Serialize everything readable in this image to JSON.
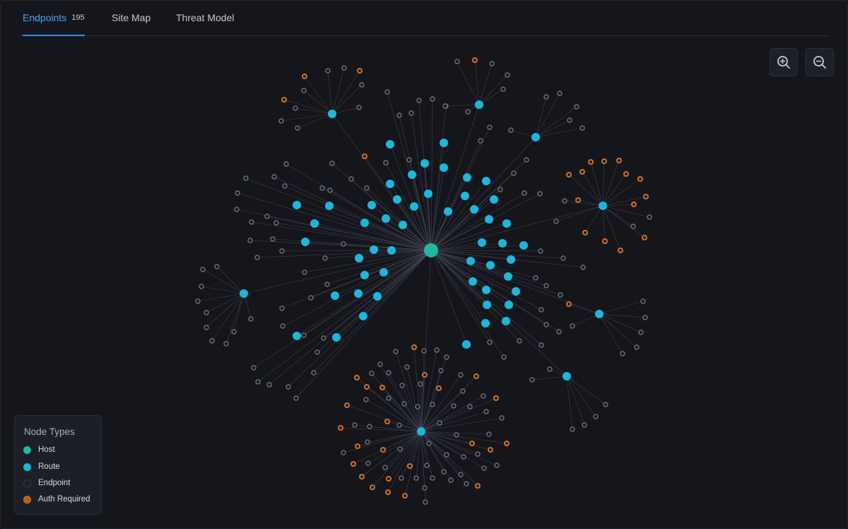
{
  "tabs": [
    {
      "label": "Endpoints",
      "count": "195",
      "active": true
    },
    {
      "label": "Site Map",
      "active": false
    },
    {
      "label": "Threat Model",
      "active": false
    }
  ],
  "toolbar": {
    "zoom_in_icon": "zoom-in-icon",
    "zoom_out_icon": "zoom-out-icon"
  },
  "legend": {
    "title": "Node Types",
    "items": [
      {
        "label": "Host",
        "color": "#1fb8a3"
      },
      {
        "label": "Route",
        "color": "#19b8dc"
      },
      {
        "label": "Endpoint",
        "color": "#2a2e36"
      },
      {
        "label": "Auth Required",
        "color": "#d8731c"
      }
    ]
  },
  "colors": {
    "background": "#14161c",
    "accent": "#2f8ef0",
    "host": "#1fb8a3",
    "route": "#19b8dc",
    "endpoint_stroke": "#6b7079",
    "auth": "#d8731c",
    "edge": "#4a4f59"
  }
}
